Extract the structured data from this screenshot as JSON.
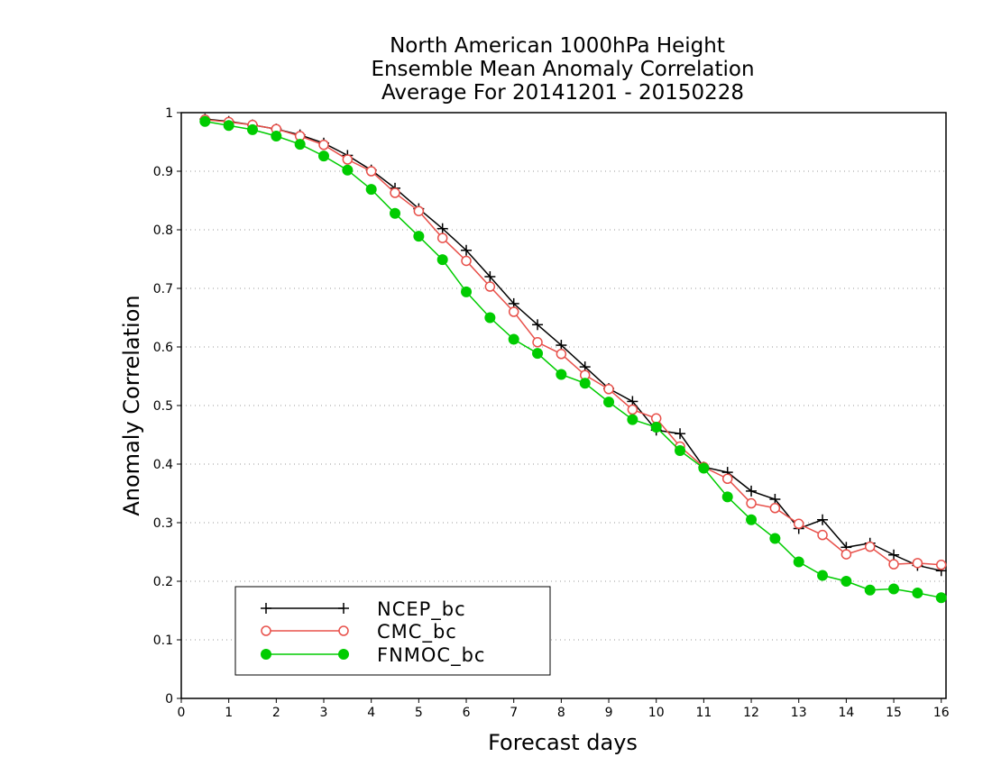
{
  "chart_data": {
    "type": "line",
    "title": [
      "North American 1000hPa Height",
      "Ensemble Mean Anomaly Correlation",
      "Average For 20141201 - 20150228"
    ],
    "xlabel": "Forecast days",
    "ylabel": "Anomaly Correlation",
    "xlim": [
      0,
      16.1
    ],
    "ylim": [
      0,
      1
    ],
    "xticks": [
      0,
      1,
      2,
      3,
      4,
      5,
      6,
      7,
      8,
      9,
      10,
      11,
      12,
      13,
      14,
      15,
      16
    ],
    "yticks": [
      0,
      0.1,
      0.2,
      0.3,
      0.4,
      0.5,
      0.6,
      0.7,
      0.8,
      0.9,
      1
    ],
    "grid": true,
    "legend_position": "bottom-left",
    "x": [
      0.5,
      1,
      1.5,
      2,
      2.5,
      3,
      3.5,
      4,
      4.5,
      5,
      5.5,
      6,
      6.5,
      7,
      7.5,
      8,
      8.5,
      9,
      9.5,
      10,
      10.5,
      11,
      11.5,
      12,
      12.5,
      13,
      13.5,
      14,
      14.5,
      15,
      15.5,
      16
    ],
    "series": [
      {
        "name": "NCEP_bc",
        "color": "#000000",
        "marker": "plus",
        "values": [
          0.989,
          0.985,
          0.979,
          0.972,
          0.962,
          0.948,
          0.927,
          0.902,
          0.871,
          0.836,
          0.802,
          0.765,
          0.72,
          0.674,
          0.638,
          0.603,
          0.566,
          0.529,
          0.507,
          0.458,
          0.452,
          0.395,
          0.386,
          0.354,
          0.34,
          0.29,
          0.305,
          0.258,
          0.265,
          0.245,
          0.227,
          0.218
        ]
      },
      {
        "name": "CMC_bc",
        "color": "#e8504a",
        "marker": "open-circle",
        "values": [
          0.988,
          0.984,
          0.979,
          0.972,
          0.96,
          0.945,
          0.92,
          0.9,
          0.863,
          0.832,
          0.786,
          0.747,
          0.703,
          0.66,
          0.608,
          0.588,
          0.552,
          0.528,
          0.493,
          0.478,
          0.43,
          0.395,
          0.375,
          0.333,
          0.325,
          0.298,
          0.279,
          0.246,
          0.259,
          0.229,
          0.231,
          0.228
        ]
      },
      {
        "name": "FNMOC_bc",
        "color": "#00cc00",
        "marker": "filled-circle",
        "values": [
          0.985,
          0.978,
          0.971,
          0.96,
          0.946,
          0.926,
          0.902,
          0.869,
          0.828,
          0.789,
          0.749,
          0.694,
          0.65,
          0.613,
          0.589,
          0.553,
          0.538,
          0.506,
          0.476,
          0.463,
          0.423,
          0.393,
          0.344,
          0.305,
          0.273,
          0.233,
          0.21,
          0.2,
          0.185,
          0.187,
          0.18,
          0.172
        ]
      }
    ]
  }
}
